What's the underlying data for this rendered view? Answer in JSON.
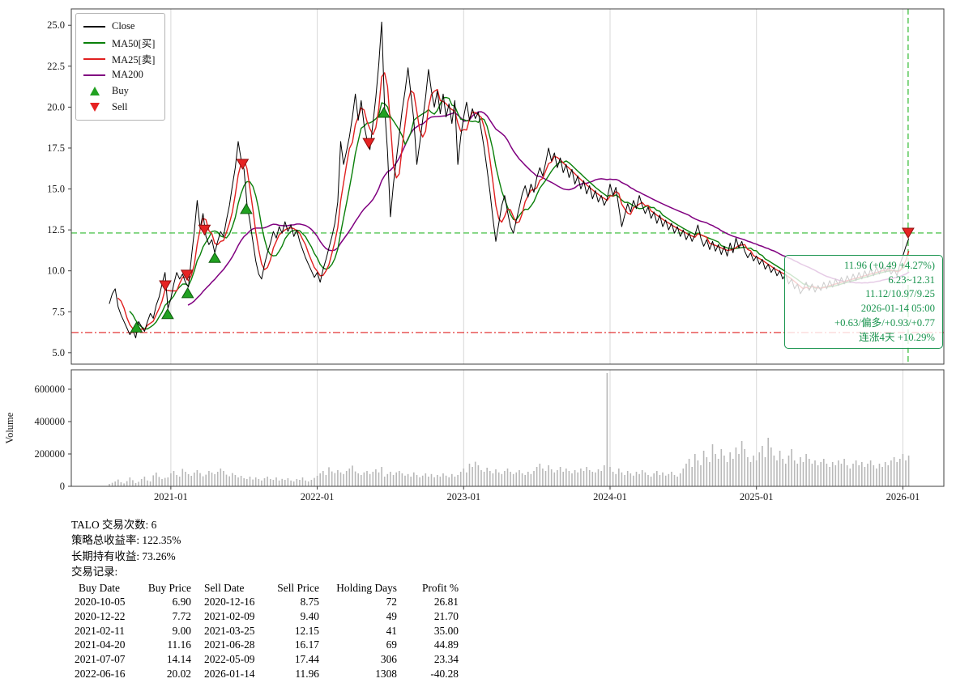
{
  "legend": {
    "items": [
      {
        "label": "Close",
        "type": "line",
        "color": "#000000"
      },
      {
        "label": "MA50[买]",
        "type": "line",
        "color": "#0a800a"
      },
      {
        "label": "MA25[卖]",
        "type": "line",
        "color": "#e02020"
      },
      {
        "label": "MA200",
        "type": "line",
        "color": "#800080"
      },
      {
        "label": "Buy",
        "type": "triangle-up",
        "color": "#21a121"
      },
      {
        "label": "Sell",
        "type": "triangle-down",
        "color": "#e62222"
      }
    ]
  },
  "chart_data": [
    {
      "type": "line",
      "panel": "price",
      "title": "",
      "xlabel": "",
      "ylabel": "",
      "xlim": [
        2020.32,
        2026.28
      ],
      "ylim": [
        4.3,
        26.0
      ],
      "yticks": [
        5.0,
        7.5,
        10.0,
        12.5,
        15.0,
        17.5,
        20.0,
        22.5,
        25.0
      ],
      "xticks": [
        {
          "v": 2021.0,
          "label": "2021-01"
        },
        {
          "v": 2022.0,
          "label": "2022-01"
        },
        {
          "v": 2023.0,
          "label": "2023-01"
        },
        {
          "v": 2024.0,
          "label": "2024-01"
        },
        {
          "v": 2025.0,
          "label": "2025-01"
        },
        {
          "v": 2026.0,
          "label": "2026-01"
        }
      ],
      "x_start": 2020.58,
      "x_step": 0.02,
      "series": [
        {
          "name": "Close",
          "color": "#000000",
          "width": 1.0,
          "values": [
            8.0,
            8.6,
            8.9,
            7.8,
            7.3,
            6.9,
            6.5,
            6.1,
            6.4,
            5.9,
            6.9,
            6.6,
            6.3,
            6.9,
            7.4,
            7.1,
            7.9,
            8.4,
            9.2,
            9.9,
            7.7,
            8.3,
            9.2,
            9.9,
            9.5,
            9.8,
            9.3,
            9.0,
            10.8,
            12.4,
            14.3,
            12.6,
            13.5,
            12.1,
            11.6,
            11.9,
            11.1,
            11.8,
            12.4,
            12.1,
            13.1,
            14.0,
            15.2,
            16.3,
            17.9,
            16.8,
            16.2,
            14.1,
            13.0,
            11.8,
            10.6,
            9.8,
            9.5,
            10.4,
            11.1,
            11.7,
            12.4,
            12.0,
            12.7,
            12.3,
            13.0,
            12.4,
            12.8,
            12.1,
            12.5,
            11.8,
            11.3,
            10.8,
            10.4,
            10.0,
            9.6,
            9.9,
            9.3,
            10.1,
            10.7,
            11.4,
            12.1,
            12.9,
            14.2,
            17.9,
            16.5,
            17.3,
            18.2,
            19.4,
            20.8,
            19.2,
            20.4,
            18.9,
            18.0,
            17.4,
            19.0,
            20.6,
            22.6,
            25.2,
            20.0,
            17.3,
            13.3,
            15.3,
            16.8,
            18.3,
            19.8,
            21.0,
            22.4,
            20.8,
            19.2,
            16.5,
            17.8,
            19.2,
            20.6,
            22.3,
            21.0,
            20.0,
            21.0,
            19.6,
            20.8,
            19.4,
            20.2,
            19.0,
            20.4,
            16.5,
            18.2,
            19.4,
            20.3,
            19.2,
            19.9,
            19.3,
            19.7,
            18.6,
            17.5,
            16.2,
            14.8,
            13.2,
            11.8,
            12.9,
            14.0,
            14.6,
            13.6,
            12.7,
            12.3,
            13.1,
            13.9,
            14.7,
            15.2,
            14.5,
            15.3,
            14.8,
            15.7,
            16.3,
            15.8,
            16.6,
            17.5,
            16.7,
            17.2,
            16.3,
            16.9,
            16.0,
            16.5,
            15.7,
            16.2,
            15.3,
            15.8,
            15.0,
            15.5,
            14.7,
            15.2,
            14.4,
            14.9,
            14.2,
            14.6,
            14.0,
            14.4,
            15.3,
            14.6,
            15.1,
            13.9,
            12.7,
            13.4,
            14.1,
            13.6,
            14.3,
            13.8,
            14.6,
            14.0,
            13.5,
            13.9,
            13.2,
            13.6,
            12.9,
            13.4,
            12.7,
            13.1,
            12.5,
            12.9,
            12.3,
            12.7,
            12.1,
            12.5,
            11.9,
            12.3,
            11.8,
            12.2,
            12.8,
            12.0,
            11.5,
            11.9,
            11.3,
            11.8,
            11.2,
            11.6,
            11.0,
            11.5,
            10.9,
            11.7,
            11.1,
            12.0,
            11.4,
            11.8,
            11.2,
            10.8,
            11.1,
            10.6,
            10.9,
            10.4,
            10.7,
            10.1,
            10.4,
            9.9,
            10.2,
            9.7,
            10.0,
            9.5,
            9.8,
            9.2,
            9.5,
            8.9,
            9.2,
            8.6,
            8.9,
            9.3,
            8.8,
            9.2,
            8.7,
            9.1,
            8.8,
            9.3,
            8.9,
            9.4,
            9.0,
            9.5,
            9.1,
            9.6,
            9.2,
            9.7,
            9.3,
            9.8,
            9.4,
            9.9,
            9.5,
            10.0,
            9.6,
            10.1,
            9.7,
            10.2,
            9.8,
            10.3,
            9.9,
            10.2,
            9.8,
            10.1,
            9.7,
            10.4,
            10.9,
            11.47,
            11.96
          ]
        },
        {
          "name": "MA50[买]",
          "color": "#0a800a",
          "width": 1.4,
          "derived": "moving_average_of_close",
          "window_points": 8
        },
        {
          "name": "MA25[卖]",
          "color": "#e02020",
          "width": 1.4,
          "derived": "moving_average_of_close",
          "window_points": 4
        },
        {
          "name": "MA200",
          "color": "#800080",
          "width": 1.5,
          "derived": "moving_average_of_close",
          "window_points": 28
        }
      ],
      "buy_markers": [
        [
          2020.765,
          6.9
        ],
        [
          2020.978,
          7.72
        ],
        [
          2021.115,
          9.0
        ],
        [
          2021.3,
          11.16
        ],
        [
          2021.515,
          14.14
        ],
        [
          2022.455,
          20.02
        ]
      ],
      "sell_markers": [
        [
          2020.962,
          8.75
        ],
        [
          2021.11,
          9.4
        ],
        [
          2021.23,
          12.15
        ],
        [
          2021.49,
          16.17
        ],
        [
          2022.352,
          17.44
        ],
        [
          2026.036,
          11.96
        ]
      ],
      "hlines": [
        {
          "y": 12.31,
          "color": "#2eb82e",
          "dash": "7,4"
        },
        {
          "y": 6.23,
          "color": "#e02020",
          "dash": "9,3,2,3"
        }
      ],
      "vlines": [
        {
          "x": 2026.036,
          "color": "#2eb82e",
          "dash": "7,4"
        }
      ],
      "annotation": {
        "color": "#18934d",
        "lines": [
          "11.96 (+0.49 +4.27%)",
          "6.23~12.31",
          "11.12/10.97/9.25",
          "2026-01-14 05:00",
          "+0.63/偏多/+0.93/+0.77",
          "连涨4天 +10.29%"
        ]
      }
    },
    {
      "type": "bar",
      "panel": "volume",
      "ylabel": "Volume",
      "color": "#b8b8b8",
      "ylim": [
        0,
        720000
      ],
      "yticks": [
        0,
        200000,
        400000,
        600000
      ],
      "x_start": 2020.58,
      "x_step": 0.02,
      "values": [
        15000,
        22000,
        30000,
        42000,
        25000,
        18000,
        32000,
        55000,
        38000,
        20000,
        28000,
        45000,
        60000,
        36000,
        30000,
        68000,
        85000,
        58000,
        45000,
        52000,
        55000,
        80000,
        95000,
        70000,
        60000,
        108000,
        90000,
        75000,
        65000,
        85000,
        100000,
        82000,
        62000,
        72000,
        95000,
        85000,
        75000,
        90000,
        110000,
        95000,
        72000,
        62000,
        82000,
        70000,
        55000,
        65000,
        50000,
        45000,
        60000,
        42000,
        55000,
        45000,
        36000,
        50000,
        60000,
        45000,
        40000,
        55000,
        36000,
        46000,
        40000,
        50000,
        36000,
        30000,
        45000,
        40000,
        55000,
        36000,
        30000,
        40000,
        52000,
        65000,
        80000,
        95000,
        70000,
        118000,
        92000,
        82000,
        100000,
        86000,
        76000,
        95000,
        110000,
        128000,
        92000,
        80000,
        70000,
        86000,
        95000,
        76000,
        90000,
        105000,
        86000,
        120000,
        60000,
        76000,
        90000,
        70000,
        86000,
        95000,
        80000,
        66000,
        76000,
        60000,
        86000,
        70000,
        56000,
        66000,
        80000,
        60000,
        76000,
        56000,
        70000,
        60000,
        80000,
        66000,
        56000,
        76000,
        60000,
        70000,
        90000,
        110000,
        86000,
        140000,
        120000,
        152000,
        130000,
        100000,
        90000,
        115000,
        95000,
        80000,
        105000,
        86000,
        76000,
        95000,
        110000,
        90000,
        76000,
        86000,
        100000,
        80000,
        70000,
        90000,
        76000,
        95000,
        120000,
        140000,
        110000,
        95000,
        130000,
        105000,
        86000,
        100000,
        120000,
        90000,
        110000,
        95000,
        80000,
        100000,
        86000,
        110000,
        95000,
        120000,
        100000,
        90000,
        86000,
        105000,
        95000,
        130000,
        700000,
        120000,
        90000,
        76000,
        110000,
        86000,
        70000,
        95000,
        80000,
        66000,
        90000,
        76000,
        100000,
        86000,
        70000,
        60000,
        80000,
        95000,
        70000,
        86000,
        66000,
        76000,
        90000,
        70000,
        60000,
        80000,
        110000,
        140000,
        170000,
        120000,
        200000,
        160000,
        130000,
        220000,
        180000,
        150000,
        260000,
        200000,
        170000,
        230000,
        190000,
        150000,
        210000,
        170000,
        240000,
        200000,
        280000,
        230000,
        180000,
        150000,
        190000,
        160000,
        210000,
        250000,
        180000,
        300000,
        240000,
        190000,
        160000,
        220000,
        170000,
        140000,
        190000,
        230000,
        160000,
        140000,
        180000,
        150000,
        200000,
        170000,
        140000,
        160000,
        130000,
        150000,
        170000,
        140000,
        120000,
        150000,
        130000,
        160000,
        140000,
        170000,
        130000,
        110000,
        140000,
        160000,
        130000,
        150000,
        120000,
        140000,
        160000,
        130000,
        110000,
        140000,
        120000,
        150000,
        130000,
        160000,
        180000,
        150000,
        170000,
        200000,
        160000,
        190000
      ]
    }
  ],
  "summary": {
    "line1": "TALO 交易次数: 6",
    "line2": "策略总收益率: 122.35%",
    "line3": "长期持有收益: 73.26%",
    "line4": "交易记录:"
  },
  "trades": {
    "headers": [
      "Buy Date",
      "Buy Price",
      "Sell Date",
      "Sell Price",
      "Holding Days",
      "Profit %"
    ],
    "rows": [
      [
        "2020-10-05",
        "6.90",
        "2020-12-16",
        "8.75",
        "72",
        "26.81"
      ],
      [
        "2020-12-22",
        "7.72",
        "2021-02-09",
        "9.40",
        "49",
        "21.70"
      ],
      [
        "2021-02-11",
        "9.00",
        "2021-03-25",
        "12.15",
        "41",
        "35.00"
      ],
      [
        "2021-04-20",
        "11.16",
        "2021-06-28",
        "16.17",
        "69",
        "44.89"
      ],
      [
        "2021-07-07",
        "14.14",
        "2022-05-09",
        "17.44",
        "306",
        "23.34"
      ],
      [
        "2022-06-16",
        "20.02",
        "2026-01-14",
        "11.96",
        "1308",
        "-40.28"
      ]
    ]
  }
}
